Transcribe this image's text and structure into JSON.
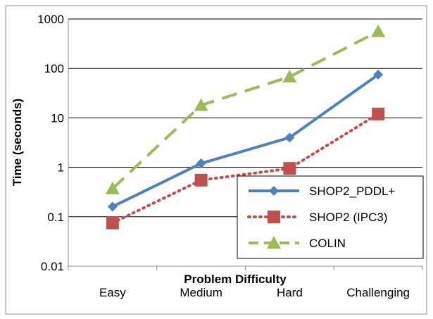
{
  "chart_data": {
    "type": "line",
    "xlabel": "Problem Difficulty",
    "ylabel": "Time (seconds)",
    "yscale": "log",
    "ylim": [
      0.01,
      1000
    ],
    "yticks": [
      "0.01",
      "0.1",
      "1",
      "10",
      "100",
      "1000"
    ],
    "categories": [
      "Easy",
      "Medium",
      "Hard",
      "Challenging"
    ],
    "grid": "horizontal",
    "legend_position": "bottom-right",
    "series": [
      {
        "name": "SHOP2_PDDL+",
        "values": [
          0.16,
          1.2,
          4,
          75
        ],
        "color": "#4F81BD",
        "line": "solid",
        "marker": "diamond"
      },
      {
        "name": "SHOP2 (IPC3)",
        "values": [
          0.075,
          0.55,
          0.95,
          12
        ],
        "color": "#C0504D",
        "line": "dotted",
        "marker": "square"
      },
      {
        "name": "COLIN",
        "values": [
          0.37,
          18,
          68,
          560
        ],
        "color": "#9BBB59",
        "line": "dashed",
        "marker": "triangle"
      }
    ]
  }
}
